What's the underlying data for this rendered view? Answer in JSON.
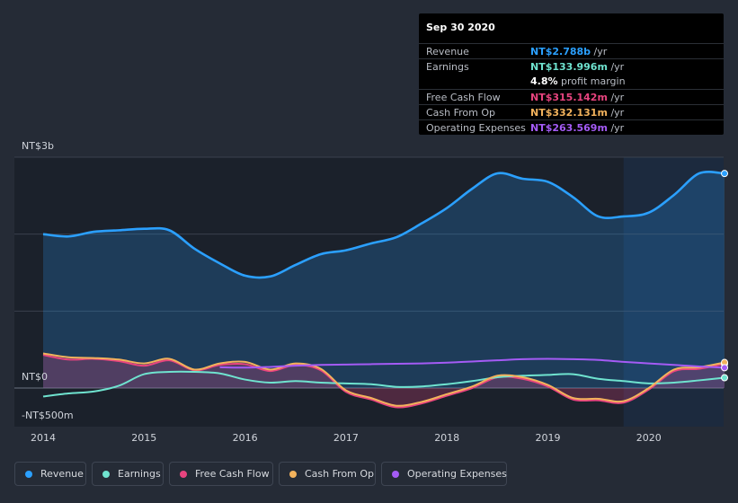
{
  "tooltip": {
    "date": "Sep 30 2020",
    "rows": [
      {
        "label": "Revenue",
        "value": "NT$2.788b",
        "unit": "/yr",
        "color": "#2ba0ff"
      },
      {
        "label": "Earnings",
        "value": "NT$133.996m",
        "unit": "/yr",
        "color": "#6fe3cf"
      },
      {
        "label": "",
        "value": "4.8%",
        "unit": "profit margin",
        "color": "#ffffff"
      },
      {
        "label": "Free Cash Flow",
        "value": "NT$315.142m",
        "unit": "/yr",
        "color": "#e8447f"
      },
      {
        "label": "Cash From Op",
        "value": "NT$332.131m",
        "unit": "/yr",
        "color": "#f2b25c"
      },
      {
        "label": "Operating Expenses",
        "value": "NT$263.569m",
        "unit": "/yr",
        "color": "#a45bf5"
      }
    ]
  },
  "legend": [
    {
      "label": "Revenue",
      "color": "#2ba0ff"
    },
    {
      "label": "Earnings",
      "color": "#6fe3cf"
    },
    {
      "label": "Free Cash Flow",
      "color": "#e8447f"
    },
    {
      "label": "Cash From Op",
      "color": "#f2b25c"
    },
    {
      "label": "Operating Expenses",
      "color": "#a45bf5"
    }
  ],
  "chart_data": {
    "type": "line",
    "title": "",
    "xlabel": "",
    "ylabel": "",
    "ylim": [
      -500,
      3000
    ],
    "y_tick_labels": [
      {
        "value": 3000,
        "label": "NT$3b"
      },
      {
        "value": 0,
        "label": "NT$0"
      },
      {
        "value": -500,
        "label": "-NT$500m"
      }
    ],
    "x_tick_labels": [
      {
        "value": 2014.0,
        "label": "2014"
      },
      {
        "value": 2015.0,
        "label": "2015"
      },
      {
        "value": 2016.0,
        "label": "2016"
      },
      {
        "value": 2017.0,
        "label": "2017"
      },
      {
        "value": 2018.0,
        "label": "2018"
      },
      {
        "value": 2019.0,
        "label": "2019"
      },
      {
        "value": 2020.0,
        "label": "2020"
      }
    ],
    "xlim": [
      2013.7,
      2020.75
    ],
    "forecast_start": 2019.75,
    "series": [
      {
        "name": "Revenue",
        "color": "#2ba0ff",
        "fill": true,
        "x": [
          2014.0,
          2014.25,
          2014.5,
          2014.75,
          2015.0,
          2015.25,
          2015.5,
          2015.75,
          2016.0,
          2016.25,
          2016.5,
          2016.75,
          2017.0,
          2017.25,
          2017.5,
          2017.75,
          2018.0,
          2018.25,
          2018.5,
          2018.75,
          2019.0,
          2019.25,
          2019.5,
          2019.75,
          2020.0,
          2020.25,
          2020.5,
          2020.75
        ],
        "values": [
          2000,
          1970,
          2030,
          2050,
          2070,
          2050,
          1810,
          1620,
          1460,
          1450,
          1600,
          1740,
          1790,
          1880,
          1960,
          2140,
          2340,
          2590,
          2790,
          2720,
          2680,
          2480,
          2230,
          2230,
          2280,
          2510,
          2790,
          2788
        ]
      },
      {
        "name": "Earnings",
        "color": "#6fe3cf",
        "x": [
          2014.0,
          2014.25,
          2014.5,
          2014.75,
          2015.0,
          2015.25,
          2015.5,
          2015.75,
          2016.0,
          2016.25,
          2016.5,
          2016.75,
          2017.0,
          2017.25,
          2017.5,
          2017.75,
          2018.0,
          2018.25,
          2018.5,
          2018.75,
          2019.0,
          2019.25,
          2019.5,
          2019.75,
          2020.0,
          2020.25,
          2020.5,
          2020.75
        ],
        "values": [
          -110,
          -70,
          -45,
          30,
          180,
          210,
          210,
          190,
          110,
          70,
          90,
          70,
          60,
          50,
          15,
          20,
          50,
          90,
          140,
          160,
          170,
          180,
          120,
          90,
          60,
          70,
          100,
          134
        ]
      },
      {
        "name": "Free Cash Flow",
        "color": "#e8447f",
        "fill": true,
        "x": [
          2014.0,
          2014.25,
          2014.5,
          2014.75,
          2015.0,
          2015.25,
          2015.5,
          2015.75,
          2016.0,
          2016.25,
          2016.5,
          2016.75,
          2017.0,
          2017.25,
          2017.5,
          2017.75,
          2018.0,
          2018.25,
          2018.5,
          2018.75,
          2019.0,
          2019.25,
          2019.5,
          2019.75,
          2020.0,
          2020.25,
          2020.5,
          2020.75
        ],
        "values": [
          430,
          370,
          380,
          350,
          290,
          360,
          230,
          300,
          310,
          220,
          300,
          230,
          -50,
          -150,
          -250,
          -200,
          -100,
          0,
          140,
          120,
          20,
          -150,
          -160,
          -190,
          -20,
          220,
          250,
          315
        ]
      },
      {
        "name": "Cash From Op",
        "color": "#f2b25c",
        "x": [
          2014.0,
          2014.25,
          2014.5,
          2014.75,
          2015.0,
          2015.25,
          2015.5,
          2015.75,
          2016.0,
          2016.25,
          2016.5,
          2016.75,
          2017.0,
          2017.25,
          2017.5,
          2017.75,
          2018.0,
          2018.25,
          2018.5,
          2018.75,
          2019.0,
          2019.25,
          2019.5,
          2019.75,
          2020.0,
          2020.25,
          2020.5,
          2020.75
        ],
        "values": [
          450,
          400,
          390,
          370,
          320,
          380,
          240,
          320,
          340,
          240,
          320,
          250,
          -30,
          -130,
          -230,
          -180,
          -80,
          20,
          160,
          140,
          40,
          -130,
          -140,
          -170,
          0,
          240,
          270,
          332
        ]
      },
      {
        "name": "Operating Expenses",
        "color": "#a45bf5",
        "x": [
          2015.75,
          2016.0,
          2016.25,
          2016.5,
          2016.75,
          2017.0,
          2017.25,
          2017.5,
          2017.75,
          2018.0,
          2018.25,
          2018.5,
          2018.75,
          2019.0,
          2019.25,
          2019.5,
          2019.75,
          2020.0,
          2020.25,
          2020.5,
          2020.75
        ],
        "values": [
          270,
          265,
          275,
          290,
          300,
          305,
          310,
          315,
          320,
          330,
          345,
          360,
          375,
          380,
          375,
          365,
          340,
          320,
          300,
          280,
          264
        ]
      }
    ]
  }
}
